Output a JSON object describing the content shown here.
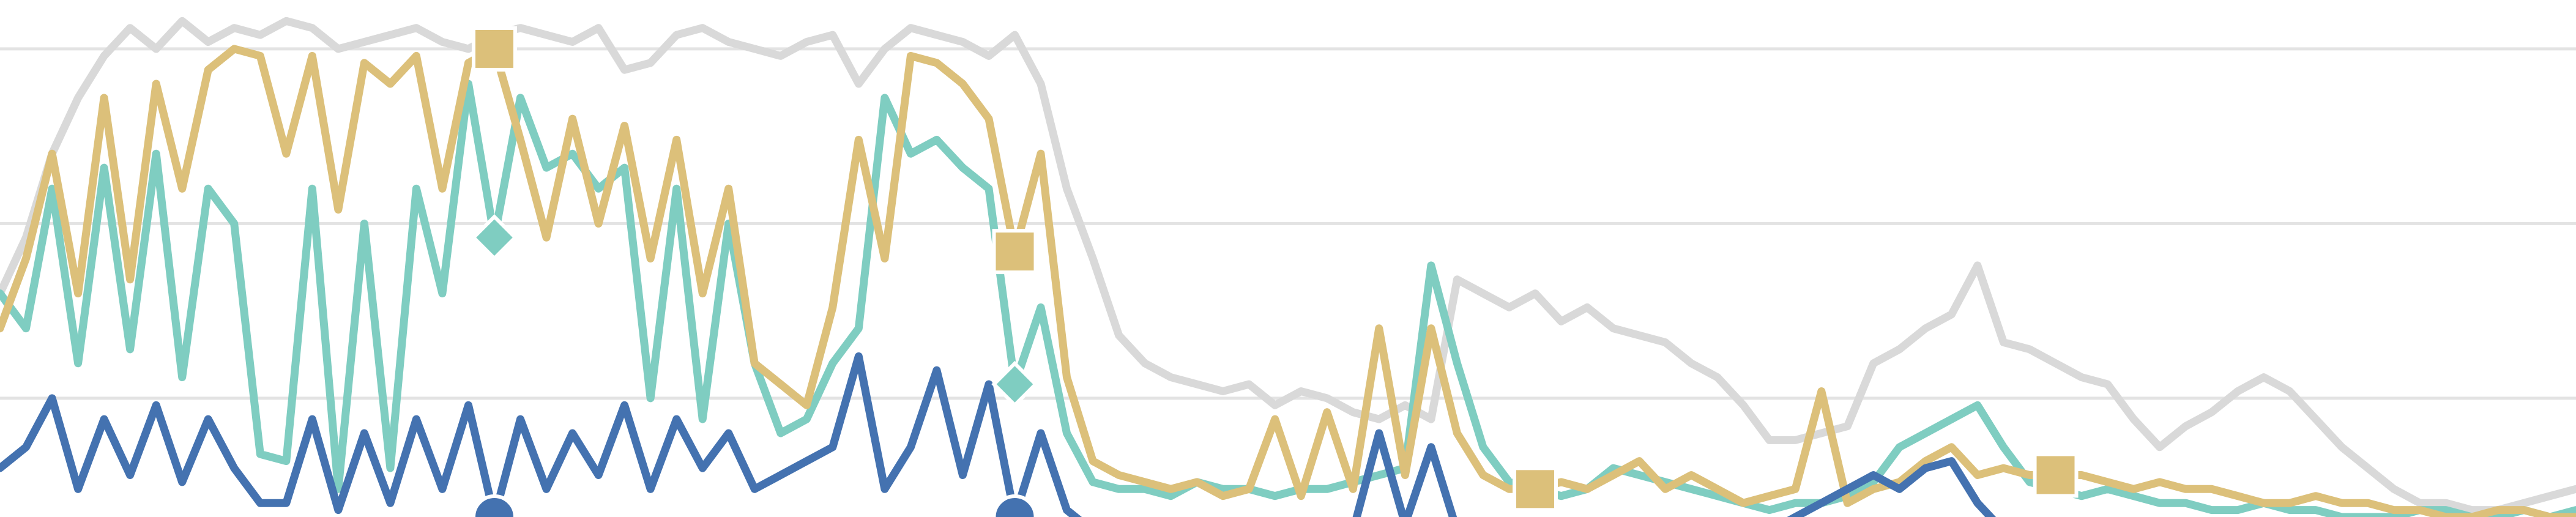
{
  "chart_data": {
    "type": "line",
    "x": [
      0,
      1,
      2,
      3,
      4,
      5,
      6,
      7,
      8,
      9,
      10,
      11,
      12,
      13,
      14,
      15,
      16,
      17,
      18,
      19,
      20,
      21,
      22,
      23,
      24,
      25,
      26,
      27,
      28,
      29,
      30,
      31,
      32,
      33,
      34,
      35,
      36,
      37,
      38,
      39,
      40,
      41,
      42,
      43,
      44,
      45,
      46,
      47,
      48,
      49,
      50,
      51,
      52,
      53,
      54,
      55,
      56,
      57,
      58,
      59,
      60,
      61,
      62,
      63,
      64,
      65,
      66,
      67,
      68,
      69,
      70,
      71,
      72,
      73,
      74,
      75,
      76,
      77,
      78,
      79,
      80,
      81,
      82,
      83,
      84,
      85,
      86,
      87,
      88,
      89,
      90,
      91,
      92,
      93,
      94,
      95,
      96,
      97,
      98,
      99
    ],
    "xlim": [
      0,
      99
    ],
    "ylim": [
      8,
      82
    ],
    "yticks": [
      25,
      50,
      75
    ],
    "grid": true,
    "series": [
      {
        "color": "#d9d9d9",
        "values": [
          40,
          48,
          60,
          68,
          74,
          78,
          75,
          79,
          76,
          78,
          77,
          79,
          78,
          75,
          76,
          77,
          78,
          76,
          75,
          77,
          78,
          77,
          76,
          78,
          72,
          73,
          77,
          78,
          76,
          75,
          74,
          76,
          77,
          70,
          75,
          78,
          77,
          76,
          74,
          77,
          70,
          55,
          45,
          34,
          30,
          28,
          27,
          26,
          27,
          24,
          26,
          25,
          23,
          22,
          24,
          22,
          42,
          40,
          38,
          40,
          36,
          38,
          35,
          34,
          33,
          30,
          28,
          24,
          19,
          19,
          20,
          21,
          30,
          32,
          35,
          37,
          44,
          33,
          32,
          30,
          28,
          27,
          22,
          18,
          21,
          23,
          26,
          28,
          26,
          22,
          18,
          15,
          12,
          10,
          10,
          9,
          9,
          10,
          11,
          12
        ]
      },
      {
        "color": "#7fcdc1",
        "marker": "diamond",
        "marker_at": [
          19,
          39
        ],
        "values": [
          40,
          35,
          55,
          30,
          58,
          32,
          60,
          28,
          55,
          50,
          17,
          16,
          55,
          12,
          50,
          15,
          55,
          40,
          70,
          48,
          68,
          58,
          60,
          55,
          58,
          25,
          55,
          22,
          50,
          30,
          20,
          22,
          30,
          35,
          68,
          60,
          62,
          58,
          55,
          27,
          38,
          20,
          13,
          12,
          12,
          11,
          13,
          12,
          12,
          11,
          12,
          12,
          13,
          14,
          15,
          44,
          30,
          18,
          13,
          12,
          11,
          12,
          15,
          14,
          13,
          12,
          11,
          10,
          9,
          10,
          10,
          11,
          13,
          18,
          20,
          22,
          24,
          18,
          13,
          12,
          11,
          12,
          11,
          10,
          10,
          9,
          9,
          10,
          9,
          9,
          8,
          8,
          8,
          9,
          9,
          8,
          8,
          9,
          8,
          9
        ]
      },
      {
        "color": "#dcc07a",
        "marker": "square",
        "marker_at": [
          19,
          39,
          59,
          79
        ],
        "values": [
          35,
          45,
          60,
          40,
          68,
          42,
          70,
          55,
          72,
          75,
          74,
          60,
          74,
          52,
          73,
          70,
          74,
          55,
          73,
          75,
          62,
          48,
          65,
          50,
          64,
          45,
          62,
          40,
          55,
          30,
          27,
          24,
          38,
          62,
          45,
          74,
          73,
          70,
          65,
          46,
          60,
          28,
          16,
          14,
          13,
          12,
          13,
          11,
          12,
          22,
          11,
          23,
          12,
          35,
          14,
          35,
          20,
          14,
          12,
          12,
          13,
          12,
          14,
          16,
          12,
          14,
          12,
          10,
          11,
          12,
          26,
          10,
          12,
          13,
          16,
          18,
          14,
          15,
          14,
          14,
          14,
          13,
          12,
          13,
          12,
          12,
          11,
          10,
          10,
          11,
          10,
          10,
          9,
          9,
          8,
          8,
          9,
          9,
          8,
          8
        ]
      },
      {
        "color": "#4472b0",
        "marker": "circle",
        "marker_at": [
          19,
          39
        ],
        "values": [
          15,
          18,
          25,
          12,
          22,
          14,
          24,
          13,
          22,
          15,
          10,
          10,
          22,
          9,
          20,
          10,
          22,
          12,
          24,
          8,
          22,
          12,
          20,
          14,
          24,
          12,
          22,
          15,
          20,
          12,
          14,
          16,
          18,
          31,
          12,
          18,
          29,
          14,
          27,
          8,
          20,
          9,
          6,
          5,
          5,
          5,
          5,
          6,
          6,
          6,
          6,
          6,
          6,
          20,
          7,
          18,
          6,
          5,
          5,
          5,
          5,
          5,
          5,
          5,
          5,
          5,
          5,
          5,
          6,
          8,
          10,
          12,
          14,
          12,
          15,
          16,
          10,
          6,
          5,
          5,
          5,
          5,
          5,
          5,
          5,
          5,
          5,
          5,
          5,
          5,
          5,
          5,
          5,
          5,
          5,
          5,
          5,
          5,
          5,
          5
        ]
      }
    ]
  }
}
